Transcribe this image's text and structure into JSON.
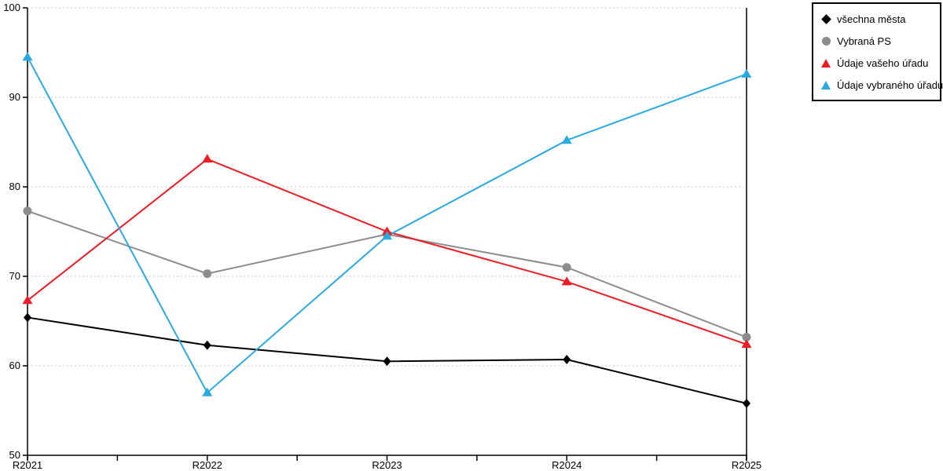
{
  "chart_data": {
    "type": "line",
    "title": "",
    "xlabel": "",
    "ylabel": "",
    "x": [
      "R2021",
      "R2022",
      "R2023",
      "R2024",
      "R2025"
    ],
    "yticks": [
      50,
      60,
      70,
      80,
      90,
      100
    ],
    "ylim": [
      50,
      100
    ],
    "grid": "horizontal-dotted",
    "legend_position": "top-right",
    "series": [
      {
        "name": "všechna města",
        "marker": "diamond",
        "color": "#000000",
        "values": [
          65.4,
          62.3,
          60.5,
          60.7,
          55.8
        ]
      },
      {
        "name": "Vybraná PS",
        "marker": "circle",
        "color": "#8c8c8c",
        "values": [
          77.3,
          70.3,
          74.7,
          71.0,
          63.2
        ]
      },
      {
        "name": "Údaje vašeho úřadu",
        "marker": "triangle",
        "color": "#ee1c25",
        "values": [
          67.3,
          83.1,
          75.0,
          69.4,
          62.4
        ]
      },
      {
        "name": "Údaje vybraného úřadu",
        "marker": "triangle",
        "color": "#29abe2",
        "values": [
          94.5,
          57.0,
          74.5,
          85.2,
          92.6
        ]
      }
    ]
  },
  "colors": {
    "gridline": "#c8c8c8",
    "axis": "#000000"
  }
}
